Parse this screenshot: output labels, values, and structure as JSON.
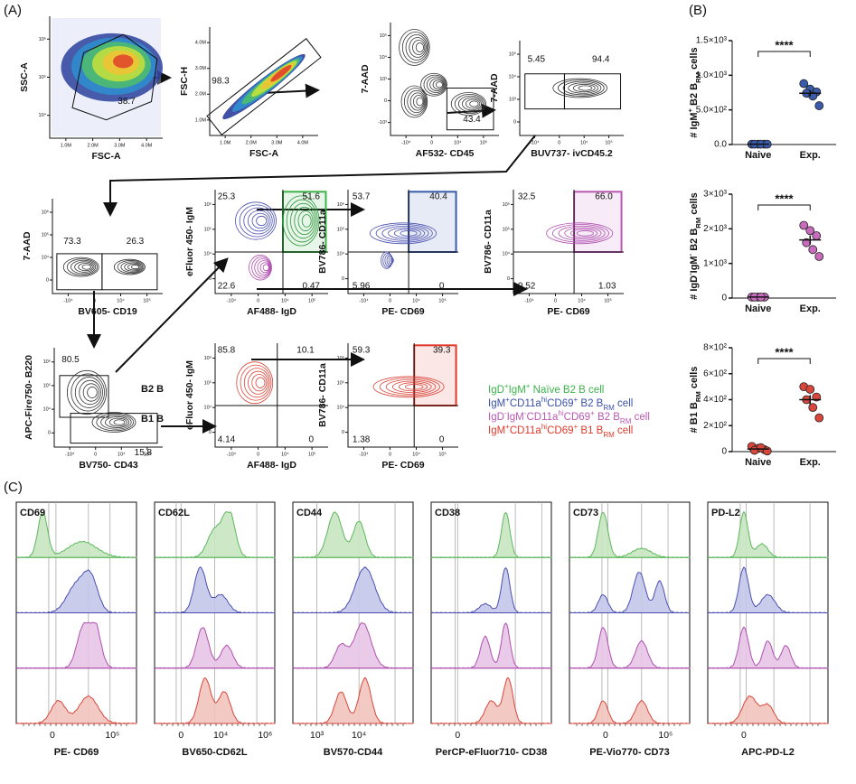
{
  "panel_labels": [
    "(A)",
    "(B)",
    "(C)"
  ],
  "flow_plots": [
    {
      "x_label": "FSC-A",
      "y_label": "SSC-A",
      "gates": [
        "38.7"
      ],
      "xticks": [
        "1.0M",
        "2.0M",
        "3.0M",
        "4.0M"
      ],
      "yticks": [
        "10⁴",
        "10⁵",
        "10⁶"
      ]
    },
    {
      "x_label": "FSC-A",
      "y_label": "FSC-H",
      "gates": [
        "98.3"
      ],
      "xticks": [
        "1.0M",
        "2.0M",
        "3.0M",
        "4.0M"
      ],
      "yticks": [
        "1.0M",
        "2.0M",
        "3.0M",
        "4.0M"
      ]
    },
    {
      "x_label": "AF532- CD45",
      "y_label": "7-AAD",
      "gates": [
        "43.4"
      ],
      "xticks": [
        "-10⁴",
        "0",
        "10⁴",
        "10⁵"
      ],
      "yticks": [
        "-10³",
        "0",
        "10³",
        "10⁴",
        "10⁵"
      ]
    },
    {
      "x_label": "BUV737- ivCD45.2",
      "y_label": "7-AAD",
      "gates": [
        "5.45",
        "94.4"
      ],
      "xticks": [
        "-10⁴",
        "0",
        "10⁴",
        "10⁵"
      ],
      "yticks": [
        "0",
        "10³",
        "10⁴",
        "10⁵"
      ]
    },
    {
      "x_label": "BV605- CD19",
      "y_label": "7-AAD",
      "gates": [
        "73.3",
        "26.3"
      ],
      "xticks": [
        "-10⁴",
        "0",
        "10⁴",
        "10⁵"
      ],
      "yticks": [
        "0",
        "10⁴",
        "10⁵",
        "10⁶"
      ]
    },
    {
      "x_label": "AF488- IgD",
      "y_label": "eFluor 450- IgM",
      "gates": [
        "25.3",
        "51.6",
        "22.6",
        "0.47"
      ],
      "xticks": [
        "-10⁴",
        "0",
        "10⁴",
        "10⁵"
      ],
      "yticks": [
        "0",
        "10⁴",
        "10⁵",
        "10⁶"
      ]
    },
    {
      "x_label": "PE- CD69",
      "y_label": "BV786- CD11a",
      "gates": [
        "53.7",
        "40.4",
        "5.96",
        "0"
      ],
      "xticks": [
        "-10⁴",
        "0",
        "10⁴",
        "10⁵"
      ],
      "yticks": [
        "0",
        "10⁴",
        "10⁵",
        "10⁶"
      ]
    },
    {
      "x_label": "PE- CD69",
      "y_label": "BV786- CD11a",
      "gates": [
        "32.5",
        "66.0",
        "0.52",
        "1.03"
      ],
      "xticks": [
        "-10⁴",
        "0",
        "10⁴",
        "10⁵"
      ],
      "yticks": [
        "0",
        "10⁴",
        "10⁵",
        "10⁶"
      ]
    },
    {
      "x_label": "BV750- CD43",
      "y_label": "APC-Fire750- B220",
      "gates": [
        "80.5",
        "15.8"
      ],
      "populations": [
        "B2 B",
        "B1 B"
      ],
      "xticks": [
        "-10⁴",
        "0",
        "10⁴",
        "10⁵"
      ],
      "yticks": [
        "0",
        "10⁴",
        "10⁵",
        "10⁶"
      ]
    },
    {
      "x_label": "AF488- IgD",
      "y_label": "eFluor 450- IgM",
      "gates": [
        "85.8",
        "10.1",
        "4.14",
        "0"
      ],
      "xticks": [
        "-10⁴",
        "0",
        "10⁴",
        "10⁵"
      ],
      "yticks": [
        "0",
        "10⁴",
        "10⁵",
        "10⁶"
      ]
    },
    {
      "x_label": "PE- CD69",
      "y_label": "BV786- CD11a",
      "gates": [
        "59.3",
        "39.3",
        "1.38",
        "0"
      ],
      "xticks": [
        "-10⁴",
        "0",
        "10⁴",
        "10⁵"
      ],
      "yticks": [
        "0",
        "10⁴",
        "10⁵",
        "10⁶"
      ]
    }
  ],
  "legend": [
    {
      "color": "#3bb44a",
      "parts": [
        {
          "text": "IgD"
        },
        {
          "text": "+",
          "sup": true
        },
        {
          "text": "IgM"
        },
        {
          "text": "+",
          "sup": true
        },
        {
          "text": " Naïve B2 B cell"
        }
      ]
    },
    {
      "color": "#3a4fa8",
      "parts": [
        {
          "text": "IgM"
        },
        {
          "text": "+",
          "sup": true
        },
        {
          "text": "CD11a"
        },
        {
          "text": "hi",
          "sup": true
        },
        {
          "text": "CD69"
        },
        {
          "text": "+",
          "sup": true
        },
        {
          "text": " B2 B"
        },
        {
          "text": "RM",
          "sub": true
        },
        {
          "text": " cell"
        }
      ]
    },
    {
      "color": "#b958b4",
      "parts": [
        {
          "text": "IgD"
        },
        {
          "text": "-",
          "sup": true
        },
        {
          "text": "IgM"
        },
        {
          "text": "-",
          "sup": true
        },
        {
          "text": "CD11a"
        },
        {
          "text": "hi",
          "sup": true
        },
        {
          "text": "CD69"
        },
        {
          "text": "+",
          "sup": true
        },
        {
          "text": " B2 B"
        },
        {
          "text": "RM",
          "sub": true
        },
        {
          "text": " cell"
        }
      ]
    },
    {
      "color": "#e0392b",
      "parts": [
        {
          "text": "IgM"
        },
        {
          "text": "+",
          "sup": true
        },
        {
          "text": "CD11a"
        },
        {
          "text": "hi",
          "sup": true
        },
        {
          "text": "CD69"
        },
        {
          "text": "+",
          "sup": true
        },
        {
          "text": " B1 B"
        },
        {
          "text": "RM",
          "sub": true
        },
        {
          "text": " cell"
        }
      ]
    }
  ],
  "dot_plots": [
    {
      "type": "dot",
      "y_label": [
        {
          "text": "# IgM"
        },
        {
          "text": "+",
          "sup": true
        },
        {
          "text": " B2 B"
        },
        {
          "text": "RM",
          "sub": true
        },
        {
          "text": " cells"
        }
      ],
      "categories": [
        "Naive",
        "Exp."
      ],
      "significance": "****",
      "ylim": [
        0,
        1500
      ],
      "yticks": [
        {
          "value": 0,
          "label": "0.0"
        },
        {
          "value": 500,
          "label": "5.0×10²"
        },
        {
          "value": 1000,
          "label": "1.0×10³"
        },
        {
          "value": 1500,
          "label": "1.5×10³"
        }
      ],
      "groups": [
        {
          "color": "#3a5bab",
          "values": [
            5,
            5,
            5,
            5,
            5,
            5
          ],
          "mean": 5,
          "sem": 1
        },
        {
          "color": "#3a5bab",
          "values": [
            880,
            800,
            760,
            740,
            700,
            560
          ],
          "mean": 740,
          "sem": 45
        }
      ]
    },
    {
      "type": "dot",
      "y_label": [
        {
          "text": "# IgD"
        },
        {
          "text": "-",
          "sup": true
        },
        {
          "text": "IgM"
        },
        {
          "text": "-",
          "sup": true
        },
        {
          "text": " B2 B"
        },
        {
          "text": "RM",
          "sub": true
        },
        {
          "text": " cells"
        }
      ],
      "categories": [
        "Naive",
        "Exp."
      ],
      "significance": "****",
      "ylim": [
        0,
        3000
      ],
      "yticks": [
        0,
        {
          "value": 1000,
          "label": "1×10³"
        },
        {
          "value": 2000,
          "label": "2×10³"
        },
        {
          "value": 3000,
          "label": "3×10³"
        }
      ],
      "groups": [
        {
          "color": "#c76bbd",
          "values": [
            30,
            30,
            30,
            30,
            30
          ],
          "mean": 30,
          "sem": 2
        },
        {
          "color": "#c76bbd",
          "values": [
            2100,
            1950,
            1800,
            1600,
            1400,
            1200
          ],
          "mean": 1680,
          "sem": 130
        }
      ]
    },
    {
      "type": "dot",
      "y_label": [
        {
          "text": "# B1 B"
        },
        {
          "text": "RM",
          "sub": true
        },
        {
          "text": " cells"
        }
      ],
      "categories": [
        "Naive",
        "Exp."
      ],
      "significance": "****",
      "ylim": [
        0,
        800
      ],
      "yticks": [
        0,
        {
          "value": 200,
          "label": "2×10²"
        },
        {
          "value": 400,
          "label": "4×10²"
        },
        {
          "value": 600,
          "label": "6×10²"
        },
        {
          "value": 800,
          "label": "8×10²"
        }
      ],
      "groups": [
        {
          "color": "#d9463b",
          "values": [
            40,
            25,
            15,
            10,
            30,
            5
          ],
          "mean": 20,
          "sem": 6
        },
        {
          "color": "#d9463b",
          "values": [
            500,
            480,
            420,
            400,
            340,
            260
          ],
          "mean": 400,
          "sem": 36
        }
      ]
    }
  ],
  "histograms": [
    {
      "marker": "CD69",
      "x_label": "PE- CD69",
      "xticks": [
        "0",
        "10⁵"
      ]
    },
    {
      "marker": "CD62L",
      "x_label": "BV650-CD62L",
      "xticks": [
        "0",
        "10⁴",
        "10⁶"
      ]
    },
    {
      "marker": "CD44",
      "x_label": "BV570-CD44",
      "xticks": [
        "10³",
        "10⁴"
      ]
    },
    {
      "marker": "CD38",
      "x_label": "PerCP-eFluor710- CD38",
      "xticks": [
        "0"
      ]
    },
    {
      "marker": "CD73",
      "x_label": "PE-Vio770- CD73",
      "xticks": [
        "0",
        "10⁵"
      ]
    },
    {
      "marker": "PD-L2",
      "x_label": "APC-PD-L2",
      "xticks": [
        "0"
      ]
    }
  ]
}
